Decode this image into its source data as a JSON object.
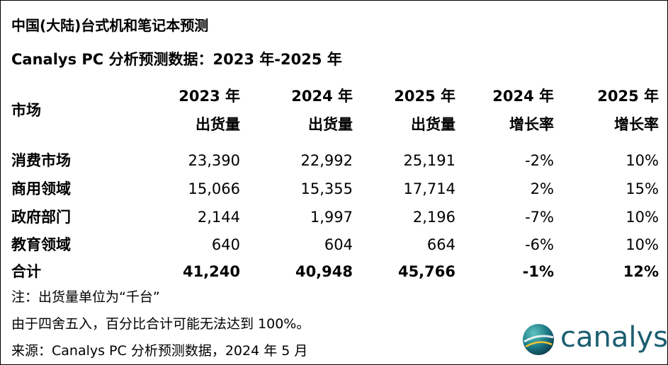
{
  "title": "中国(大陆)台式机和笔记本预测",
  "subtitle": "Canalys PC 分析预测数据：2023 年-2025 年",
  "table": {
    "market_header": "市场",
    "headers": [
      [
        "2023 年",
        "出货量"
      ],
      [
        "2024 年",
        "出货量"
      ],
      [
        "2025 年",
        "出货量"
      ],
      [
        "2024 年",
        "增长率"
      ],
      [
        "2025 年",
        "增长率"
      ]
    ],
    "rows": [
      [
        "消费市场",
        "23,390",
        "22,992",
        "25,191",
        "-2%",
        "10%"
      ],
      [
        "商用领域",
        "15,066",
        "15,355",
        "17,714",
        "2%",
        "15%"
      ],
      [
        "政府部门",
        "2,144",
        "1,997",
        "2,196",
        "-7%",
        "10%"
      ],
      [
        "教育领域",
        "640",
        "604",
        "664",
        "-6%",
        "10%"
      ]
    ],
    "total": [
      "合计",
      "41,240",
      "40,948",
      "45,766",
      "-1%",
      "12%"
    ]
  },
  "notes": [
    "注：出货量单位为“千台”",
    "由于四舍五入，百分比合计可能无法达到 100%。",
    "来源：Canalys PC 分析预测数据，2024 年 5 月"
  ],
  "logo": "canalys"
}
